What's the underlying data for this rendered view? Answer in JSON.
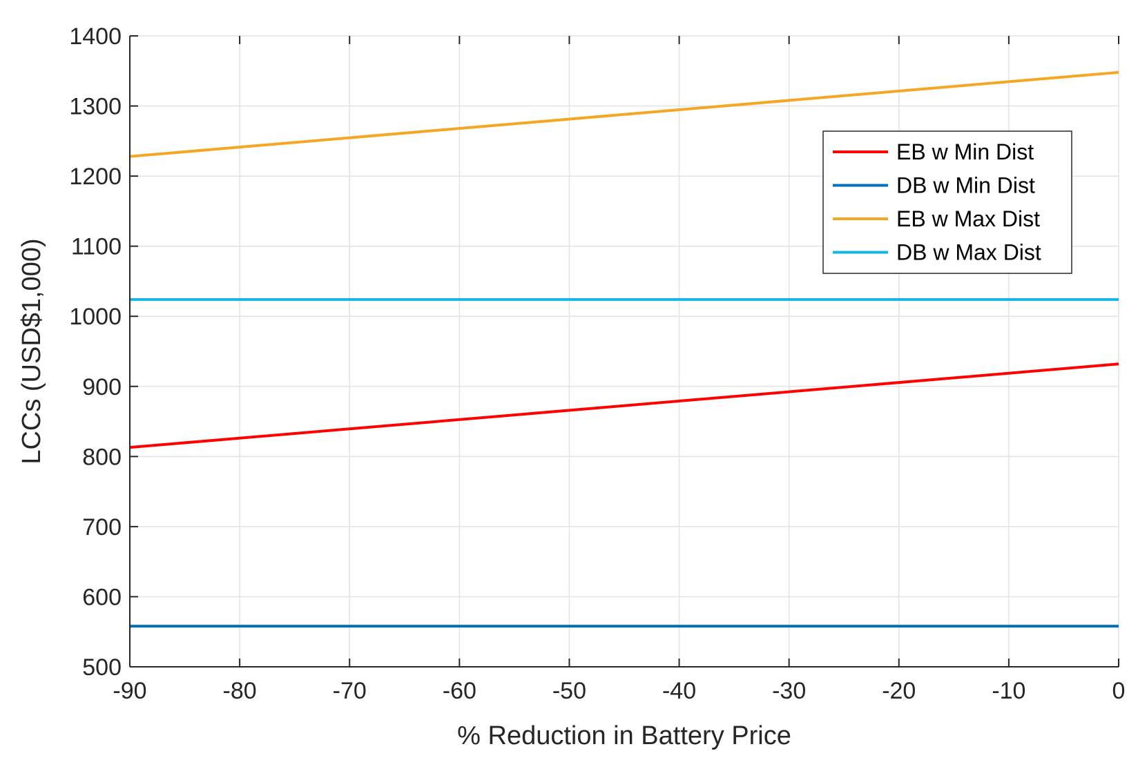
{
  "chart_data": {
    "type": "line",
    "title": "",
    "xlabel": "% Reduction in Battery Price",
    "ylabel": "LCCs (USD$1,000)",
    "xlim": [
      -90,
      0
    ],
    "ylim": [
      500,
      1400
    ],
    "xticks": [
      -90,
      -80,
      -70,
      -60,
      -50,
      -40,
      -30,
      -20,
      -10,
      0
    ],
    "yticks": [
      500,
      600,
      700,
      800,
      900,
      1000,
      1100,
      1200,
      1300,
      1400
    ],
    "grid": true,
    "legend_position": "top-right",
    "x": [
      -90,
      0
    ],
    "series": [
      {
        "name": "EB w Min Dist",
        "values": [
          813,
          932
        ],
        "color": "#ff0000"
      },
      {
        "name": "DB w Min Dist",
        "values": [
          558,
          558
        ],
        "color": "#0072bd"
      },
      {
        "name": "EB w Max Dist",
        "values": [
          1228,
          1348
        ],
        "color": "#f5a623"
      },
      {
        "name": "DB w Max Dist",
        "values": [
          1024,
          1024
        ],
        "color": "#14b4e6"
      }
    ]
  }
}
